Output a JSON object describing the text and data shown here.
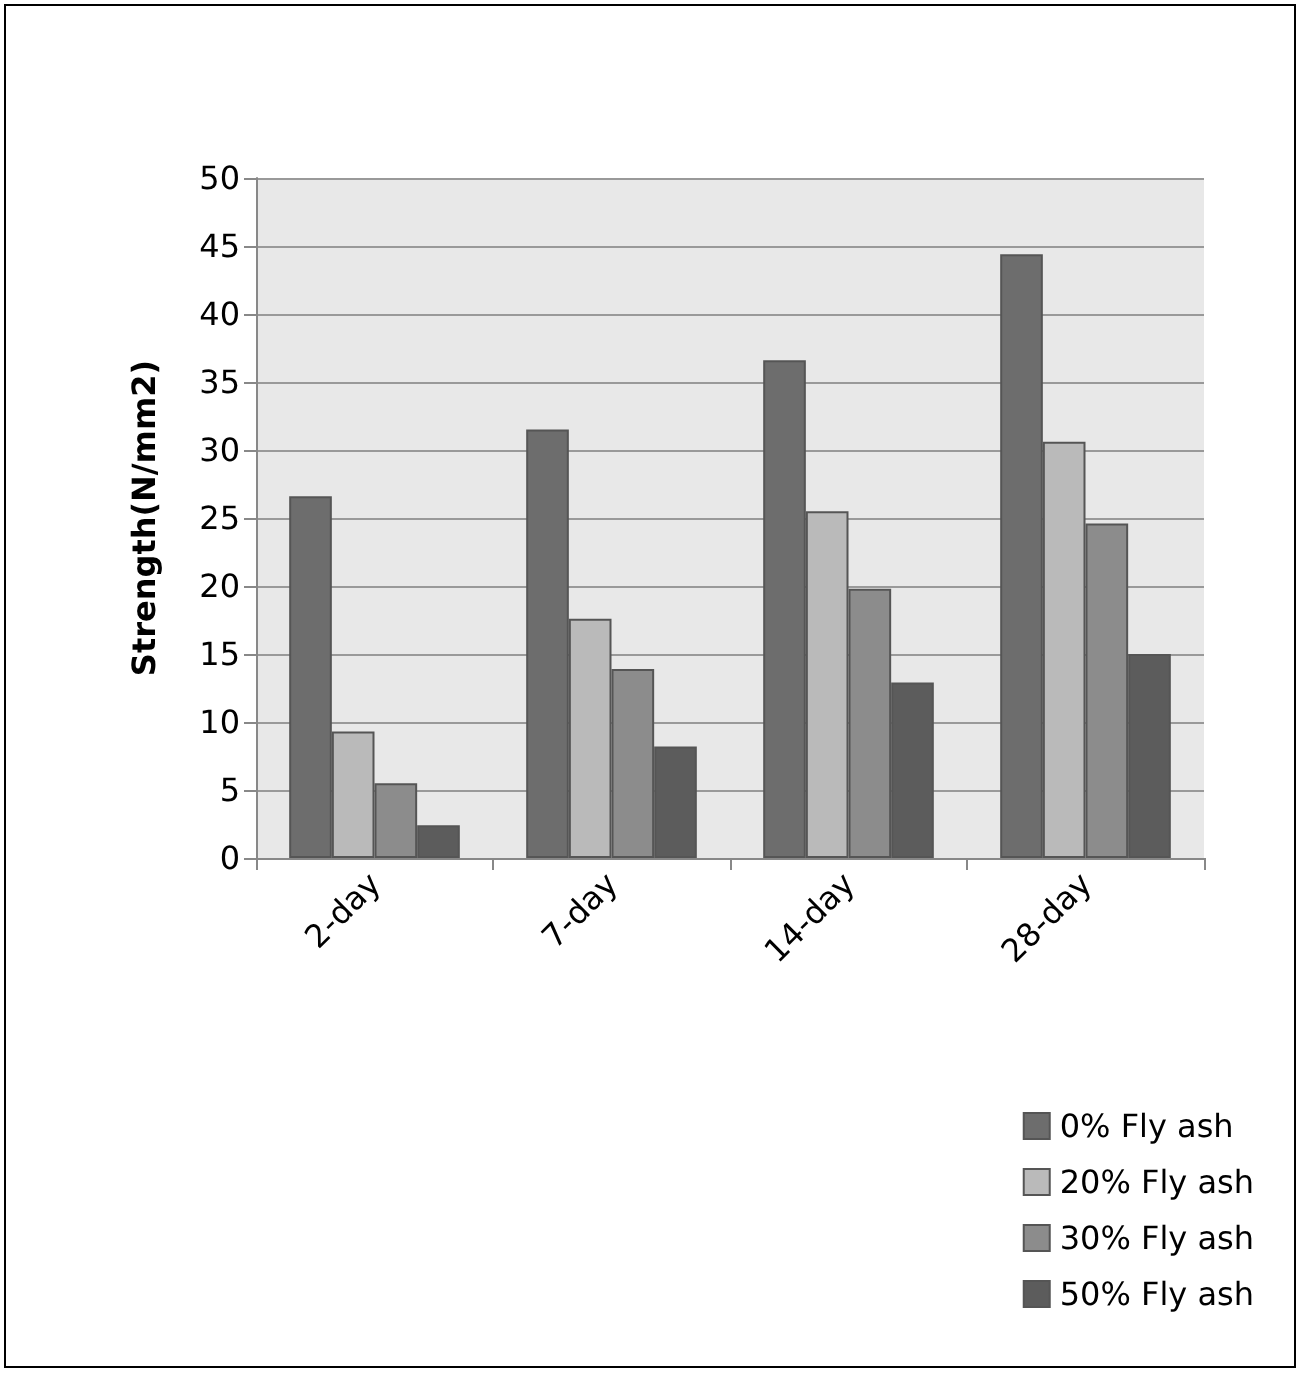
{
  "chart_data": {
    "type": "bar",
    "ylabel": "Strength(N/mm2)",
    "categories": [
      "2-day",
      "7-day",
      "14-day",
      "28-day"
    ],
    "series": [
      {
        "name": "0% Fly ash",
        "color": "#6d6d6d",
        "values": [
          26.6,
          31.5,
          36.6,
          44.4
        ]
      },
      {
        "name": "20% Fly ash",
        "color": "#bababa",
        "values": [
          9.3,
          17.6,
          25.5,
          30.6
        ]
      },
      {
        "name": "30% Fly ash",
        "color": "#8c8c8c",
        "values": [
          5.5,
          13.9,
          19.8,
          24.6
        ]
      },
      {
        "name": "50% Fly ash",
        "color": "#5c5c5c",
        "values": [
          2.4,
          8.2,
          12.9,
          15.0
        ]
      }
    ],
    "ylim": [
      0,
      50
    ],
    "yticks": [
      0,
      5,
      10,
      15,
      20,
      25,
      30,
      35,
      40,
      45,
      50
    ],
    "grid": "y",
    "legend": "bottom right"
  }
}
